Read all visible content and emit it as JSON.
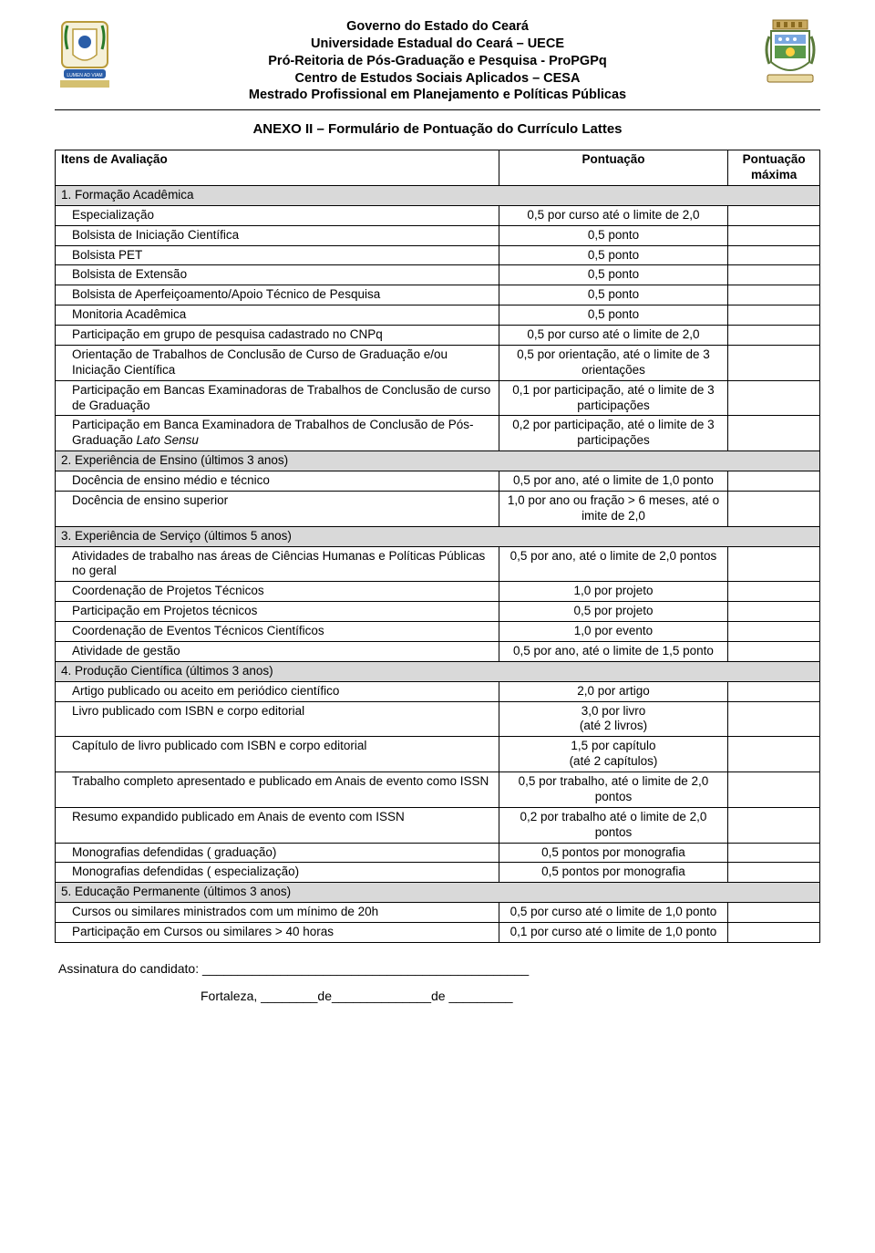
{
  "header": {
    "line1": "Governo do Estado do Ceará",
    "line2": "Universidade Estadual do Ceará – UECE",
    "line3": "Pró-Reitoria de Pós-Graduação e Pesquisa - ProPGPq",
    "line4": "Centro de Estudos Sociais Aplicados – CESA",
    "line5": "Mestrado Profissional em Planejamento e Políticas Públicas"
  },
  "anexo_title": "ANEXO II – Formulário de Pontuação do Currículo Lattes",
  "table_headers": {
    "item": "Itens de Avaliação",
    "score": "Pontuação",
    "max": "Pontuação máxima"
  },
  "sections": [
    {
      "title": "1. Formação Acadêmica",
      "rows": [
        {
          "item": "Especialização",
          "score": "0,5 por curso até o limite de 2,0"
        },
        {
          "item": "Bolsista de Iniciação Científica",
          "score": "0,5 ponto"
        },
        {
          "item": "Bolsista PET",
          "score": "0,5 ponto"
        },
        {
          "item": "Bolsista de Extensão",
          "score": "0,5 ponto"
        },
        {
          "item": "Bolsista de Aperfeiçoamento/Apoio Técnico de Pesquisa",
          "score": "0,5 ponto"
        },
        {
          "item": "Monitoria Acadêmica",
          "score": "0,5 ponto"
        },
        {
          "item": "Participação em grupo de pesquisa cadastrado no CNPq",
          "score": "0,5 por curso até o limite de 2,0"
        },
        {
          "item": "Orientação de Trabalhos de Conclusão de Curso de Graduação e/ou Iniciação Científica",
          "score": "0,5 por orientação, até o limite de 3  orientações"
        },
        {
          "item": "Participação em Bancas Examinadoras de Trabalhos de Conclusão de curso de Graduação",
          "score": "0,1 por participação, até o limite de 3 participações"
        },
        {
          "item": "Participação em Banca Examinadora de Trabalhos de Conclusão de Pós-Graduação Lato Sensu",
          "score": "0,2 por participação, até o limite de 3 participações",
          "italic_tail": "Lato Sensu"
        }
      ]
    },
    {
      "title": "2. Experiência de Ensino (últimos 3 anos)",
      "rows": [
        {
          "item": "Docência de ensino médio e técnico",
          "score": "0,5 por ano, até o limite de 1,0 ponto"
        },
        {
          "item": "Docência de ensino superior",
          "score": "1,0 por ano ou fração >  6 meses, até o imite de 2,0"
        }
      ]
    },
    {
      "title": "3. Experiência de Serviço (últimos 5 anos)",
      "rows": [
        {
          "item": "Atividades de trabalho nas áreas de Ciências Humanas e Políticas Públicas no geral",
          "score": "0,5 por ano, até o limite de 2,0 pontos"
        },
        {
          "item": "Coordenação de Projetos Técnicos",
          "score": "1,0 por projeto"
        },
        {
          "item": "Participação em Projetos técnicos",
          "score": "0,5 por projeto"
        },
        {
          "item": "Coordenação de Eventos Técnicos Científicos",
          "score": "1,0 por evento"
        },
        {
          "item": "Atividade de gestão",
          "score": "0,5 por ano, até o limite de 1,5 ponto"
        }
      ]
    },
    {
      "title": "4. Produção Científica (últimos 3 anos)",
      "rows": [
        {
          "item": "Artigo publicado ou aceito em periódico científico",
          "score": "2,0 por artigo"
        },
        {
          "item": "Livro publicado com ISBN e corpo editorial",
          "score": "3,0 por livro\n(até 2 livros)"
        },
        {
          "item": "Capítulo de livro publicado com ISBN e corpo editorial",
          "score": "1,5 por capítulo\n(até 2 capítulos)"
        },
        {
          "item": "Trabalho completo apresentado e publicado em Anais de evento como ISSN",
          "score": "0,5 por trabalho, até o limite de 2,0 pontos"
        },
        {
          "item": "Resumo expandido publicado em Anais de evento com ISSN",
          "score": "0,2 por trabalho até o limite de 2,0 pontos"
        },
        {
          "item": "Monografias defendidas ( graduação)",
          "score": "0,5 pontos por monografia"
        },
        {
          "item": "Monografias defendidas ( especialização)",
          "score": "0,5 pontos por monografia"
        }
      ]
    },
    {
      "title": "5. Educação Permanente (últimos 3 anos)",
      "rows": [
        {
          "item": "Cursos ou similares ministrados com um mínimo de 20h",
          "score": "0,5 por curso até o limite de 1,0 ponto"
        },
        {
          "item": "Participação em Cursos ou similares > 40 horas",
          "score": "0,1 por curso até o limite de 1,0 ponto"
        }
      ]
    }
  ],
  "signature": {
    "label": "Assinatura do candidato: ______________________________________________",
    "date": "Fortaleza, ________de______________de _________"
  },
  "colors": {
    "section_bg": "#d9d9d9",
    "border": "#000000",
    "text": "#000000",
    "page_bg": "#ffffff"
  }
}
